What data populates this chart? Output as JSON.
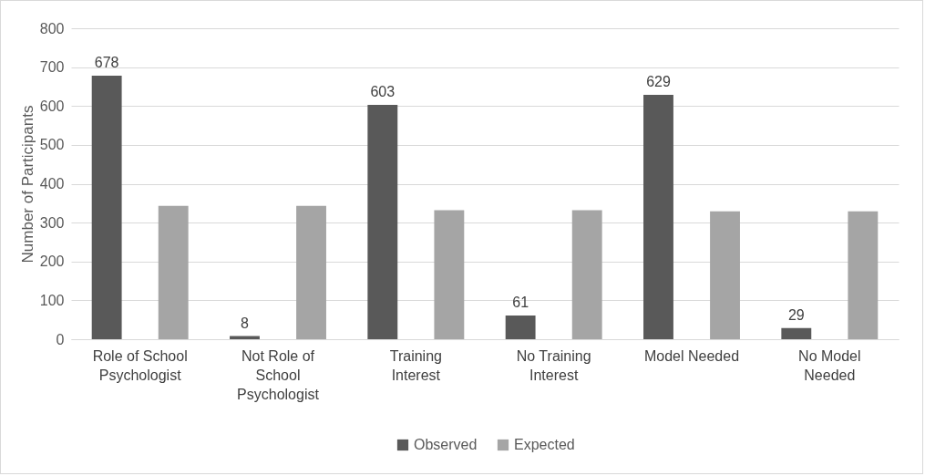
{
  "chart_data": {
    "type": "bar",
    "ylabel": "Number of Participants",
    "categories": [
      "Role of School Psychologist",
      "Not Role of School Psychologist",
      "Training Interest",
      "No Training Interest",
      "Model Needed",
      "No Model Needed"
    ],
    "series": [
      {
        "name": "Observed",
        "color": "#595959",
        "values": [
          678,
          8,
          603,
          61,
          629,
          29
        ],
        "value_labels": [
          "678",
          "8",
          "603",
          "61",
          "629",
          "29"
        ]
      },
      {
        "name": "Expected",
        "color": "#a5a5a5",
        "values": [
          343,
          343,
          332,
          332,
          329,
          329
        ]
      }
    ],
    "ylim": [
      0,
      800
    ],
    "yticks": [
      0,
      100,
      200,
      300,
      400,
      500,
      600,
      700,
      800
    ],
    "grid": "y",
    "legend": "bottom"
  }
}
